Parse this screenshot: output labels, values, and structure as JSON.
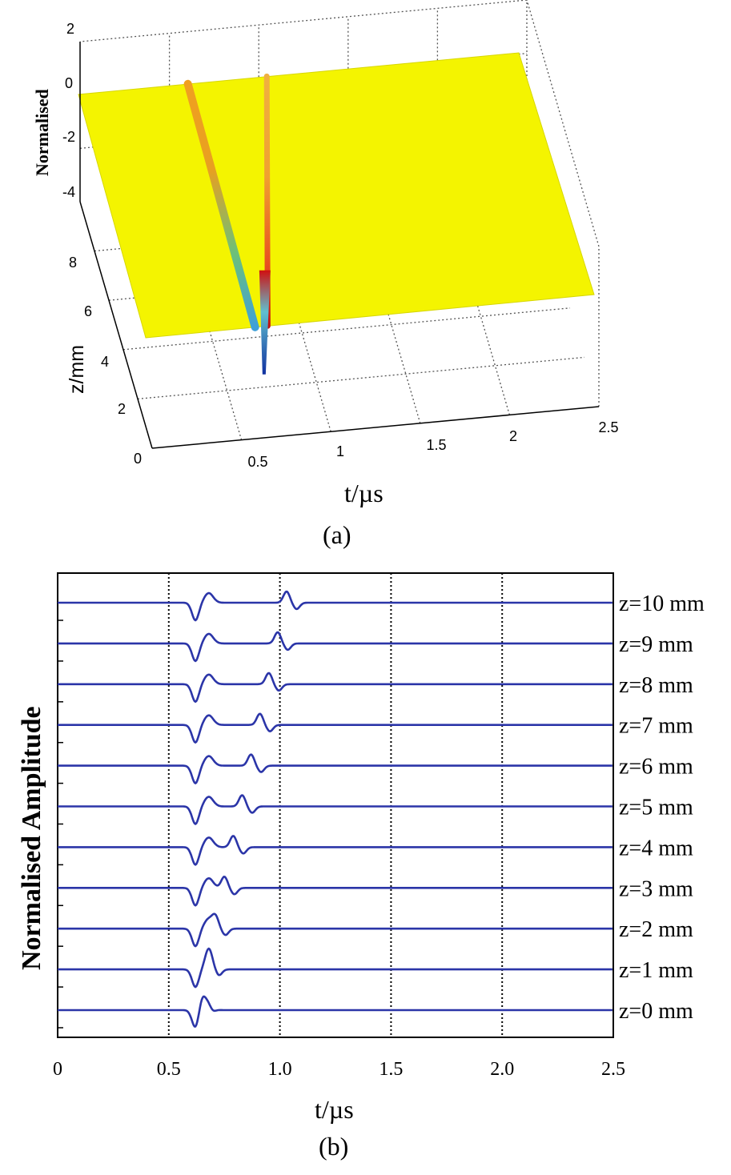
{
  "chart_data": [
    {
      "panel_label": "(a)",
      "type": "surface",
      "zlabel": "Normalised",
      "ylabel": "z/mm",
      "xlabel": "t/µs",
      "x_ticks": [
        "0.5",
        "1",
        "1.5",
        "2",
        "2.5"
      ],
      "y_ticks": [
        "0",
        "2",
        "4",
        "6",
        "8"
      ],
      "z_ticks": [
        "2",
        "0",
        "-2",
        "-4"
      ],
      "xlim": [
        0,
        2.5
      ],
      "ylim": [
        0,
        10
      ],
      "zlim": [
        -4,
        2
      ],
      "grid": true,
      "surface_color": "#f4f400",
      "ridges": [
        {
          "t_at_z0": 0.61,
          "t_at_z10": 0.61
        },
        {
          "t_at_z0": 0.68,
          "t_at_z10": 1.05
        }
      ]
    },
    {
      "panel_label": "(b)",
      "type": "line",
      "xlabel": "t/µs",
      "ylabel": "Normalised Amplitude",
      "x_ticks": [
        "0",
        "0.5",
        "1.0",
        "1.5",
        "2.0",
        "2.5"
      ],
      "xlim": [
        0,
        2.5
      ],
      "grid": "vertical dotted",
      "line_color": "#2b35a8",
      "pulse1_t": 0.62,
      "series": [
        {
          "name": "z=10  mm",
          "echo_t": 1.03
        },
        {
          "name": "z=9  mm",
          "echo_t": 0.99
        },
        {
          "name": "z=8  mm",
          "echo_t": 0.95
        },
        {
          "name": "z=7  mm",
          "echo_t": 0.91
        },
        {
          "name": "z=6  mm",
          "echo_t": 0.87
        },
        {
          "name": "z=5  mm",
          "echo_t": 0.83
        },
        {
          "name": "z=4  mm",
          "echo_t": 0.79
        },
        {
          "name": "z=3  mm",
          "echo_t": 0.75
        },
        {
          "name": "z=2  mm",
          "echo_t": 0.71
        },
        {
          "name": "z=1  mm",
          "echo_t": 0.68
        },
        {
          "name": "z=0  mm",
          "echo_t": 0.65
        }
      ]
    }
  ]
}
